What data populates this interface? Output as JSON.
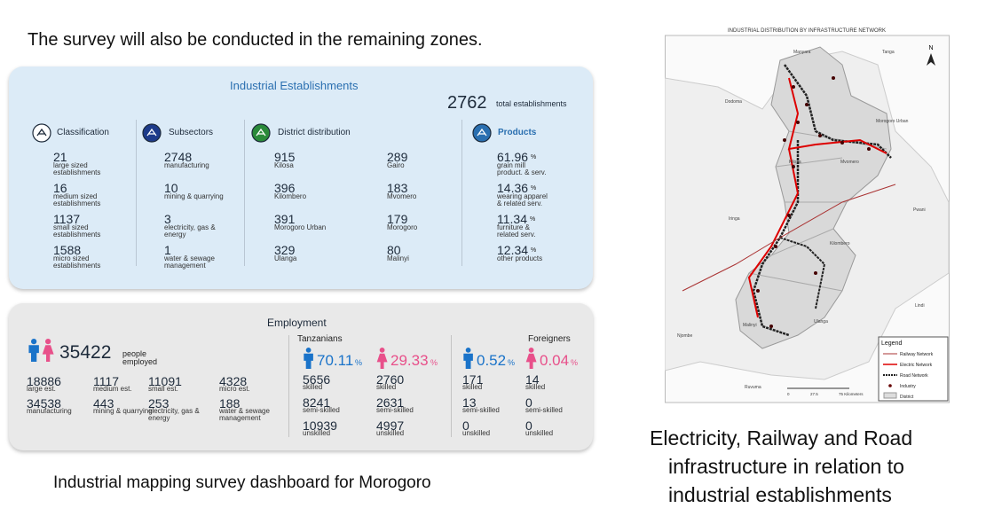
{
  "intro": "The survey will also be conducted in the remaining zones.",
  "dashboard": {
    "industrial": {
      "title": "Industrial Establishments",
      "total": 2762,
      "total_label": "total establishments",
      "classification": {
        "title": "Classification",
        "items": [
          {
            "value": 21,
            "label": "large sized establishments"
          },
          {
            "value": 16,
            "label": "medium sized establishments"
          },
          {
            "value": 1137,
            "label": "small sized establishments"
          },
          {
            "value": 1588,
            "label": "micro sized establishments"
          }
        ]
      },
      "subsectors": {
        "title": "Subsectors",
        "items": [
          {
            "value": 2748,
            "label": "manufacturing"
          },
          {
            "value": 10,
            "label": "mining & quarrying"
          },
          {
            "value": 3,
            "label": "electricity, gas & energy"
          },
          {
            "value": 1,
            "label": "water & sewage management"
          }
        ]
      },
      "districts": {
        "title": "District distribution",
        "items": [
          {
            "value": 915,
            "label": "Kilosa"
          },
          {
            "value": 289,
            "label": "Gairo"
          },
          {
            "value": 396,
            "label": "Kilombero"
          },
          {
            "value": 183,
            "label": "Mvomero"
          },
          {
            "value": 391,
            "label": "Morogoro Urban"
          },
          {
            "value": 179,
            "label": "Morogoro"
          },
          {
            "value": 329,
            "label": "Ulanga"
          },
          {
            "value": 80,
            "label": "Malinyi"
          }
        ]
      },
      "products": {
        "title": "Products",
        "items": [
          {
            "value": 61.96,
            "unit": "%",
            "label": "grain mill product. & serv."
          },
          {
            "value": 14.36,
            "unit": "%",
            "label": "wearing apparel & related serv."
          },
          {
            "value": 11.34,
            "unit": "%",
            "label": "furniture & related serv."
          },
          {
            "value": 12.34,
            "unit": "%",
            "label": "other products"
          }
        ]
      }
    },
    "employment": {
      "title": "Employment",
      "total": 35422,
      "total_label": "people employed",
      "by_size": [
        {
          "value": 18886,
          "label": "large est."
        },
        {
          "value": 1117,
          "label": "medium est."
        },
        {
          "value": 11091,
          "label": "small est."
        },
        {
          "value": 4328,
          "label": "micro est."
        }
      ],
      "by_sector": [
        {
          "value": 34538,
          "label": "manufacturing"
        },
        {
          "value": 443,
          "label": "mining & quarrying"
        },
        {
          "value": 253,
          "label": "electricity, gas & energy"
        },
        {
          "value": 188,
          "label": "water & sewage management"
        }
      ],
      "tanzanians": {
        "title": "Tanzanians",
        "male": {
          "value": 70.11,
          "unit": "%"
        },
        "female": {
          "value": 29.33,
          "unit": "%"
        },
        "male_skills": [
          {
            "value": 5656,
            "label": "skilled"
          },
          {
            "value": 8241,
            "label": "semi-skilled"
          },
          {
            "value": 10939,
            "label": "unskilled"
          }
        ],
        "female_skills": [
          {
            "value": 2760,
            "label": "skilled"
          },
          {
            "value": 2631,
            "label": "semi-skilled"
          },
          {
            "value": 4997,
            "label": "unskilled"
          }
        ]
      },
      "foreigners": {
        "title": "Foreigners",
        "male": {
          "value": 0.52,
          "unit": "%"
        },
        "female": {
          "value": 0.04,
          "unit": "%"
        },
        "male_skills": [
          {
            "value": 171,
            "label": "skilled"
          },
          {
            "value": 13,
            "label": "semi-skilled"
          },
          {
            "value": 0,
            "label": "unskilled"
          }
        ],
        "female_skills": [
          {
            "value": 14,
            "label": "skilled"
          },
          {
            "value": 0,
            "label": "semi-skilled"
          },
          {
            "value": 0,
            "label": "unskilled"
          }
        ]
      }
    },
    "caption": "Industrial mapping survey dashboard for Morogoro"
  },
  "map": {
    "title": "INDUSTRIAL DISTRIBUTION BY INFRASTRUCTURE NETWORK",
    "north": "N",
    "places": [
      "Manyara",
      "Tanga",
      "Dodoma",
      "Morogoro Urban",
      "Kilosa",
      "Mvomero",
      "Iringa",
      "Pwani",
      "Kilombero",
      "Malinyi",
      "Ulanga",
      "Lindi",
      "Njombe",
      "Ruvuma"
    ],
    "legend": {
      "title": "Legend",
      "items": [
        "Railway Network",
        "Electric Network",
        "Road Network",
        "Industry",
        "District"
      ]
    },
    "scale": [
      "0",
      "27.5",
      "75 Kilometers"
    ]
  },
  "map_caption": [
    "Electricity, Railway and Road",
    "infrastructure in relation to",
    "industrial establishments"
  ]
}
